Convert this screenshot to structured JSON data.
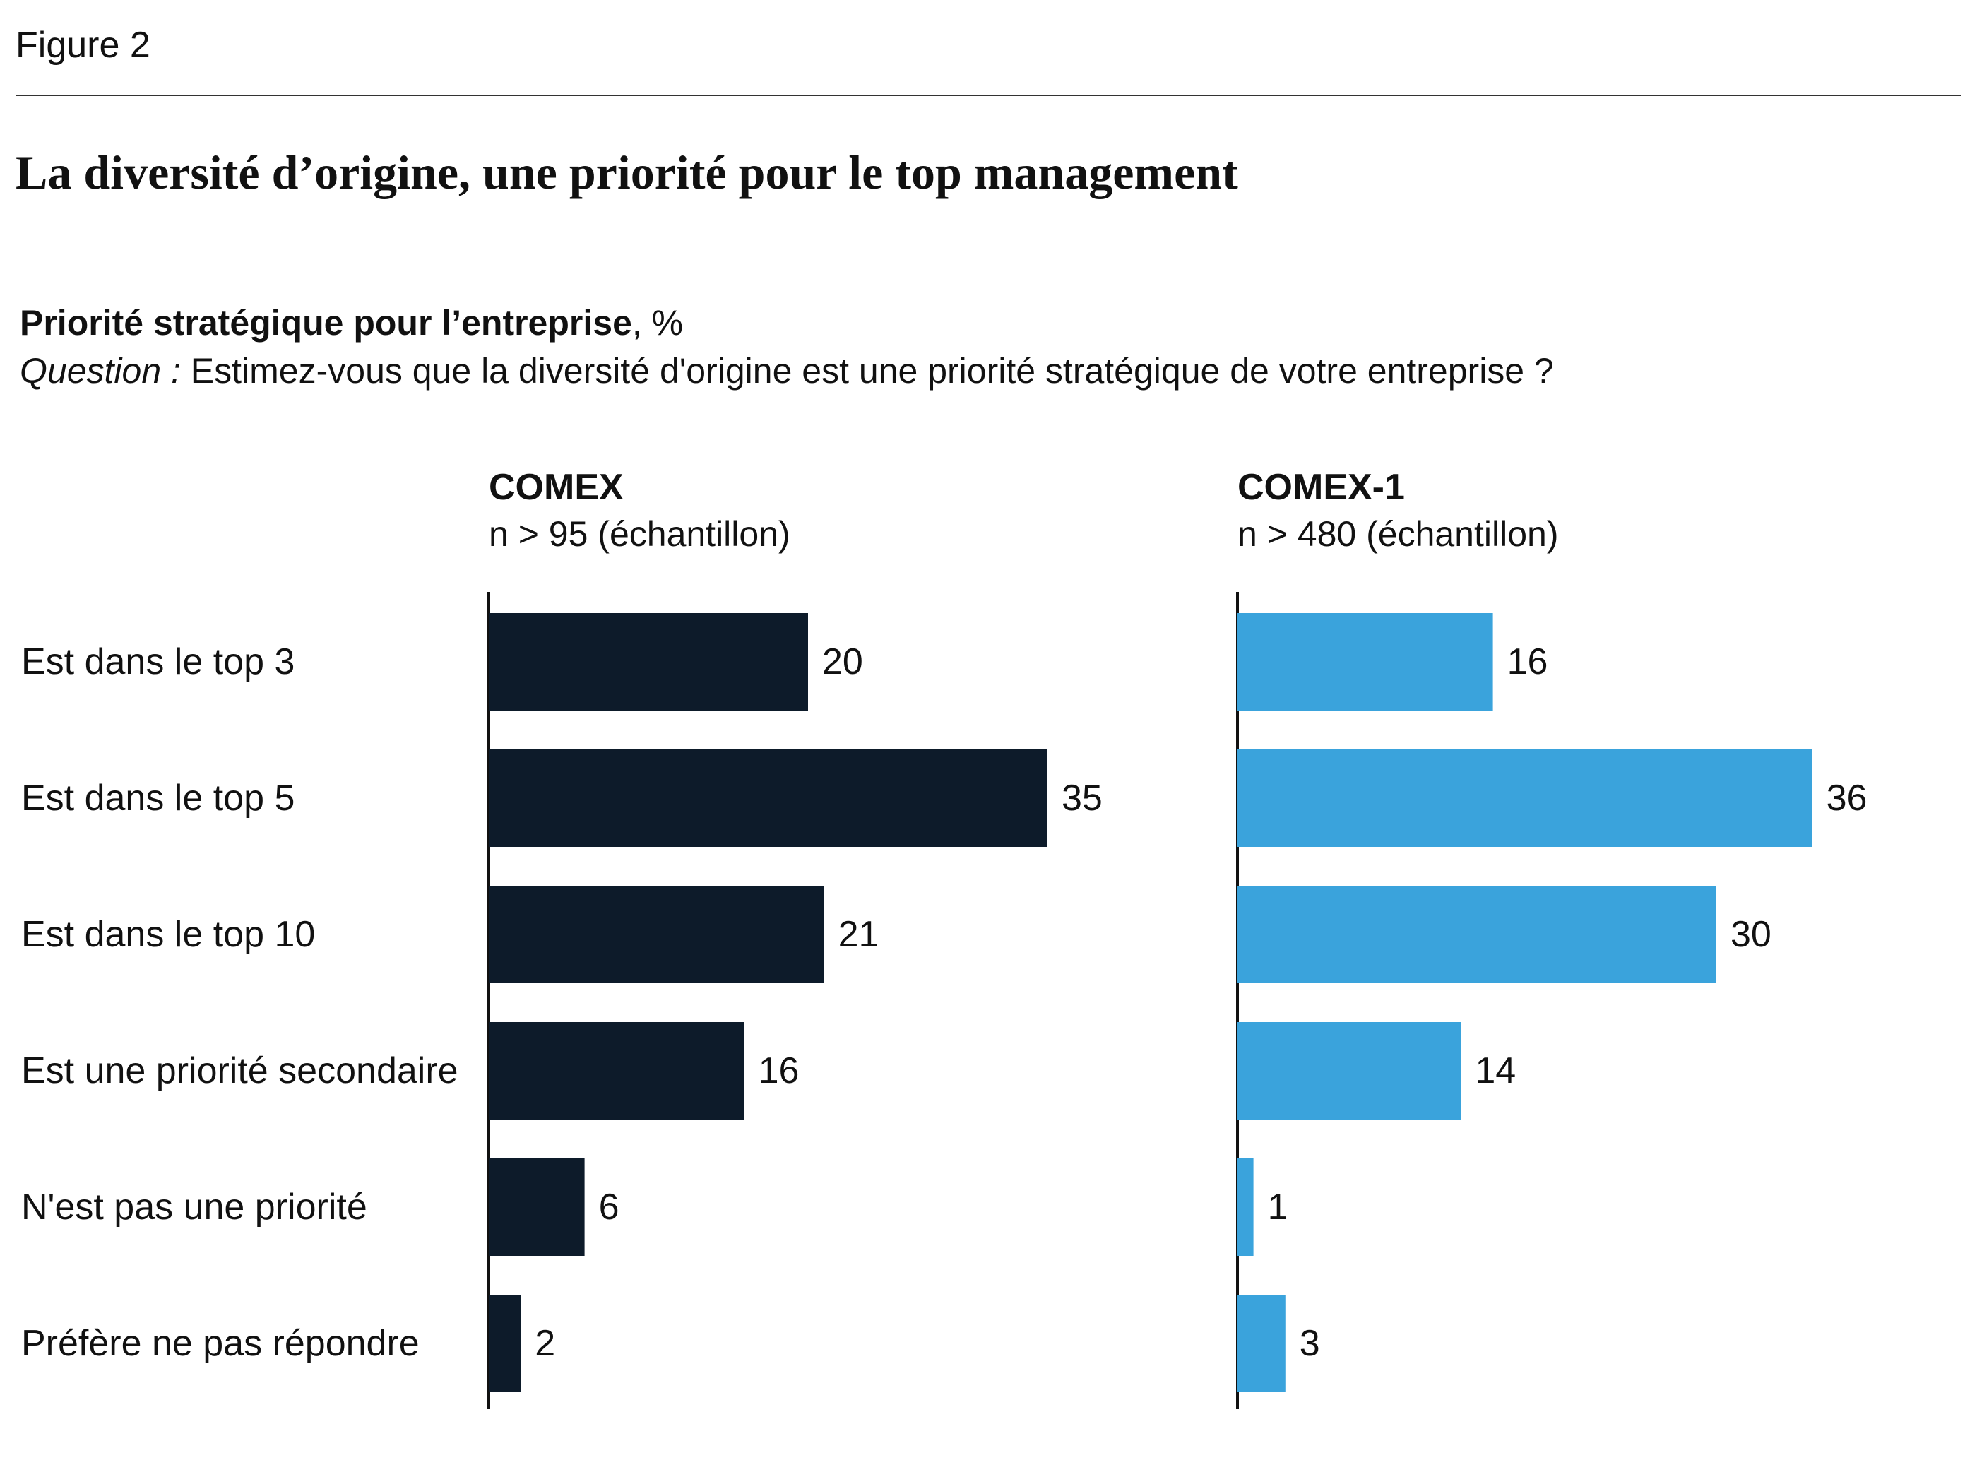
{
  "figure_label": "Figure 2",
  "title": "La diversité d’origine, une priorité pour le top management",
  "subtitle": {
    "bold": "Priorité stratégique pour l’entreprise",
    "rest": ", %"
  },
  "question": {
    "label": "Question :",
    "text": " Estimez-vous que la diversité d'origine est une priorité stratégique de votre entreprise ?"
  },
  "colors": {
    "comex": "#0d1b2a",
    "comex1": "#3aa3dc",
    "axis": "#111111"
  },
  "chart_data": [
    {
      "type": "bar",
      "orientation": "horizontal",
      "title": "COMEX",
      "subtitle": "n > 95 (échantillon)",
      "categories": [
        "Est dans le top 3",
        "Est dans le top 5",
        "Est dans le top 10",
        "Est une priorité secondaire",
        "N'est pas une priorité",
        "Préfère ne pas répondre"
      ],
      "values": [
        20,
        35,
        21,
        16,
        6,
        2
      ],
      "unit": "%",
      "xlim": [
        0,
        40
      ]
    },
    {
      "type": "bar",
      "orientation": "horizontal",
      "title": "COMEX-1",
      "subtitle": "n > 480 (échantillon)",
      "categories": [
        "Est dans le top 3",
        "Est dans le top 5",
        "Est dans le top 10",
        "Est une priorité secondaire",
        "N'est pas une priorité",
        "Préfère ne pas répondre"
      ],
      "values": [
        16,
        36,
        30,
        14,
        1,
        3
      ],
      "unit": "%",
      "xlim": [
        0,
        40
      ]
    }
  ]
}
